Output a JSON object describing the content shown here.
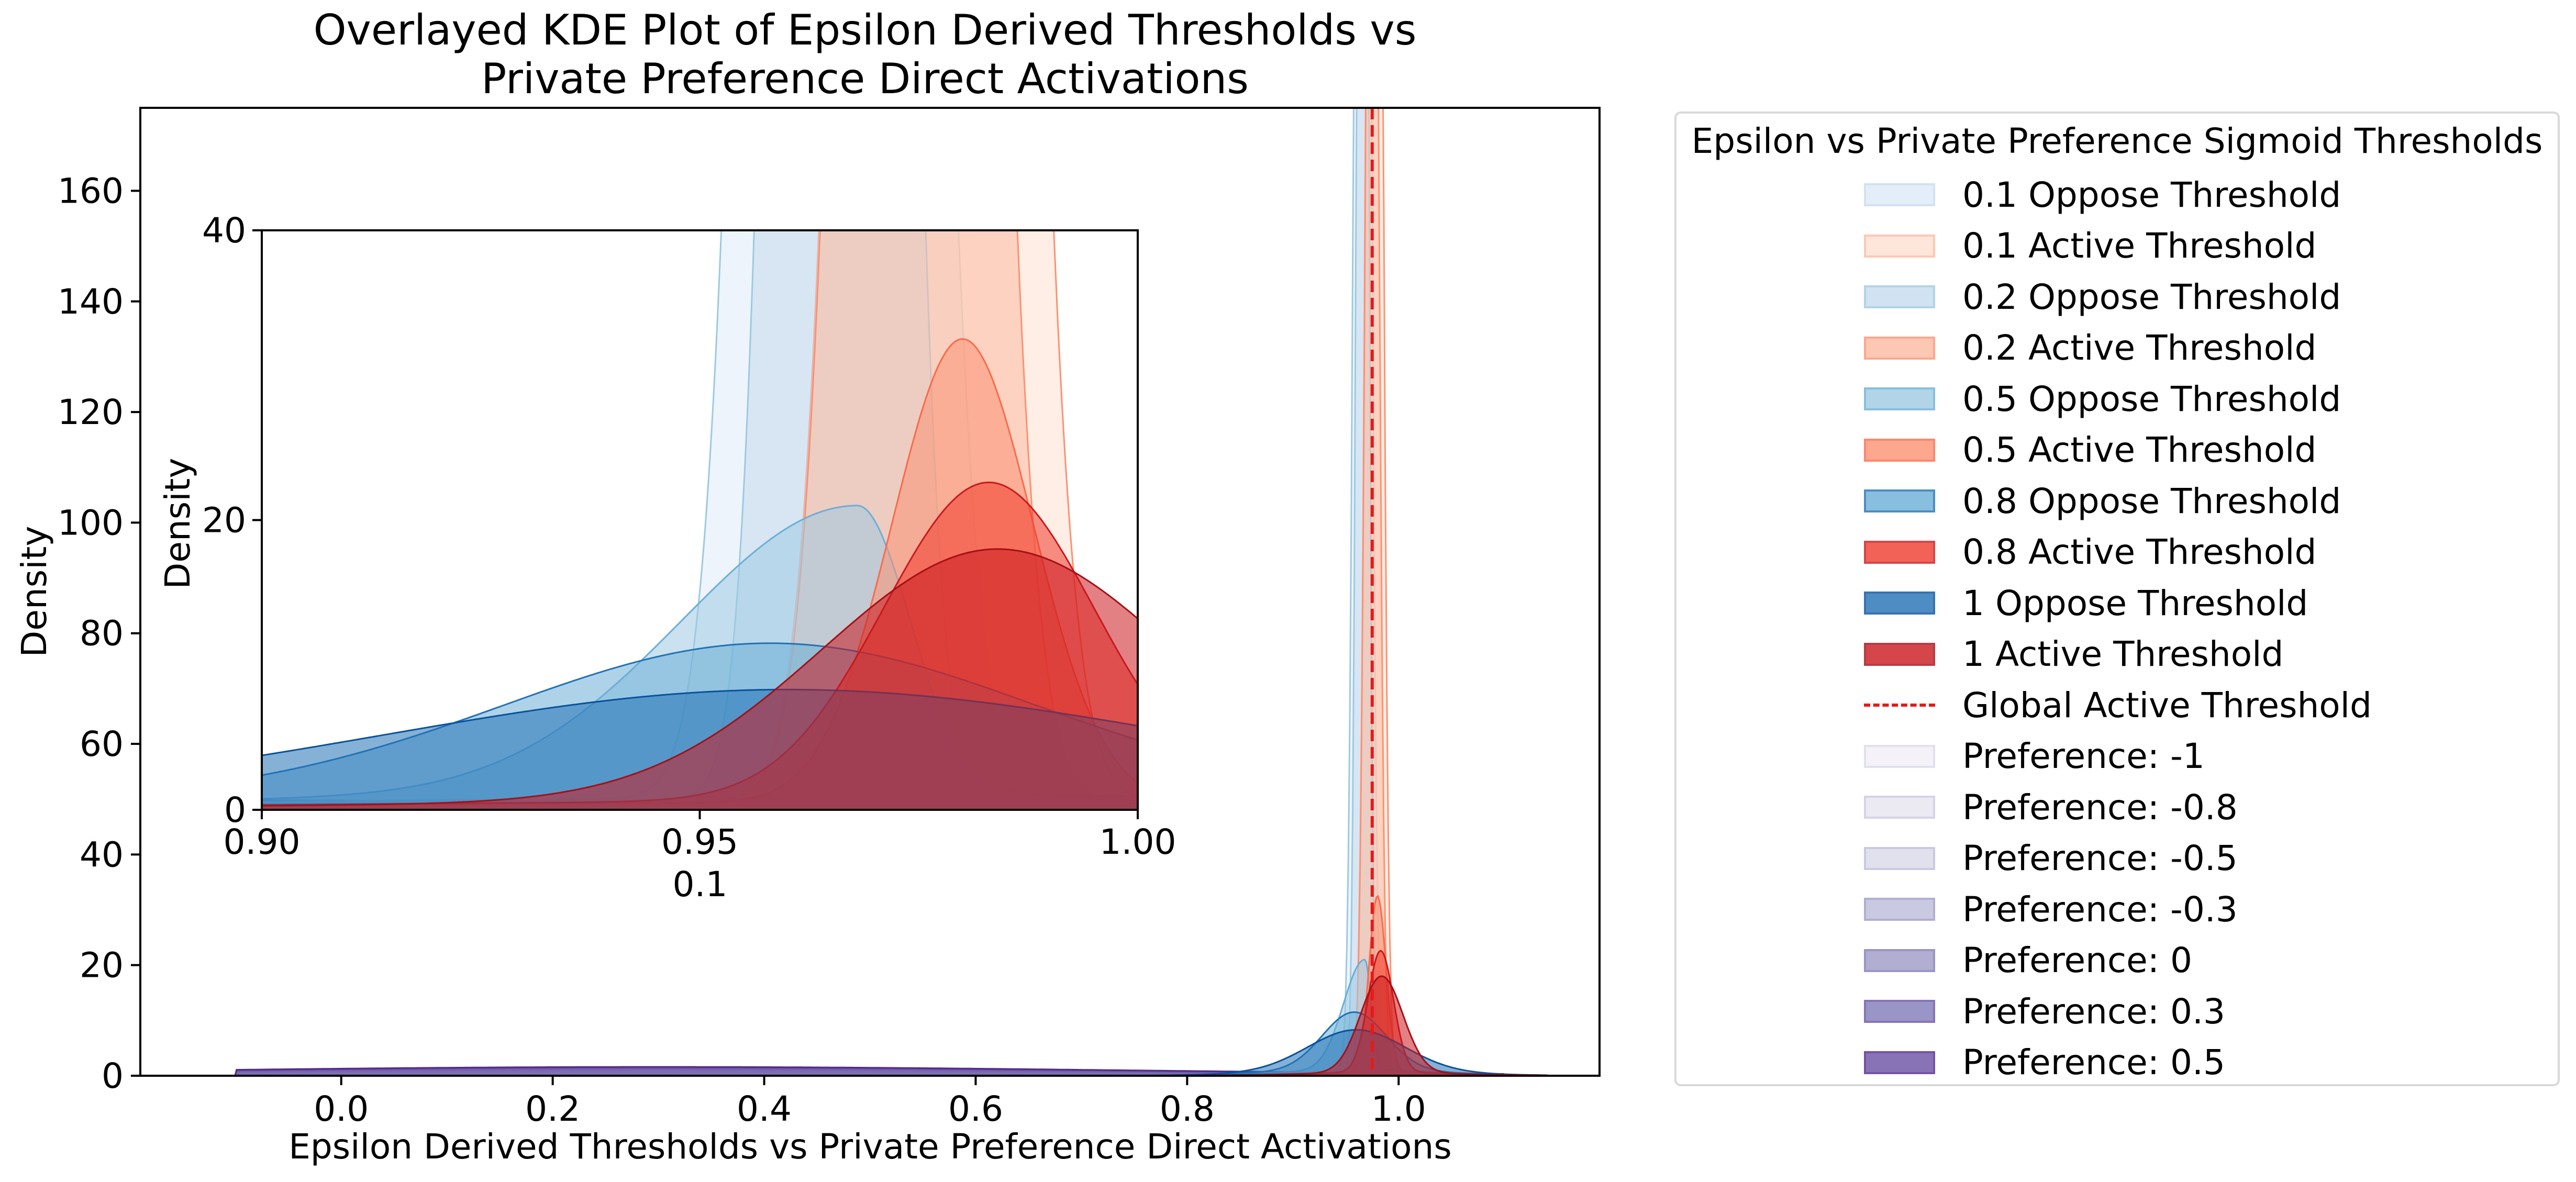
{
  "chart_data": {
    "type": "area",
    "title_lines": [
      "Overlayed KDE Plot of Epsilon Derived Thresholds vs",
      "Private Preference Direct Activations"
    ],
    "xlabel": "Epsilon Derived Thresholds vs Private Preference Direct Activations",
    "ylabel": "Density",
    "xlim": [
      -0.19,
      1.19
    ],
    "ylim": [
      0,
      175
    ],
    "xticks": [
      0.0,
      0.2,
      0.4,
      0.6,
      0.8,
      1.0
    ],
    "xtick_labels": [
      "0.0",
      "0.2",
      "0.4",
      "0.6",
      "0.8",
      "1.0"
    ],
    "yticks": [
      0,
      20,
      40,
      60,
      80,
      100,
      120,
      140,
      160
    ],
    "ytick_labels": [
      "0",
      "20",
      "40",
      "60",
      "80",
      "100",
      "120",
      "140",
      "160"
    ],
    "global_active_threshold": 0.975,
    "series": [
      {
        "name": "0.1 Oppose Threshold",
        "color": "#9ecae1",
        "fill": "#deebf7",
        "kind": "gauss",
        "mu": 0.966,
        "sigma": 0.006,
        "peak": 500,
        "base": 0.8
      },
      {
        "name": "0.1 Active Threshold",
        "color": "#fc9272",
        "fill": "#fee0d2",
        "kind": "gauss",
        "mu": 0.977,
        "sigma": 0.006,
        "peak": 480,
        "base": 0.6
      },
      {
        "name": "0.2 Oppose Threshold",
        "color": "#9ecae1",
        "fill": "#c6dbef",
        "kind": "gauss",
        "mu": 0.966,
        "sigma": 0.0045,
        "peak": 420,
        "base": 0.7
      },
      {
        "name": "0.2 Active Threshold",
        "color": "#fc9272",
        "fill": "#fcbba1",
        "kind": "gauss",
        "mu": 0.975,
        "sigma": 0.0055,
        "peak": 320,
        "base": 0.6
      },
      {
        "name": "0.5 Oppose Threshold",
        "color": "#6baed6",
        "fill": "#9ecae1",
        "kind": "skew",
        "mu": 0.968,
        "sl": 0.02,
        "sr": 0.006,
        "peak": 20,
        "base": 1.0
      },
      {
        "name": "0.5 Active Threshold",
        "color": "#fb6a4a",
        "fill": "#fc9272",
        "kind": "gauss",
        "mu": 0.98,
        "sigma": 0.008,
        "peak": 32,
        "base": 0.5
      },
      {
        "name": "0.8 Oppose Threshold",
        "color": "#2171b5",
        "fill": "#6baed6",
        "kind": "gauss",
        "mu": 0.958,
        "sigma": 0.03,
        "peak": 10.5,
        "base": 1.0
      },
      {
        "name": "0.8 Active Threshold",
        "color": "#cb181d",
        "fill": "#ef3b2c",
        "kind": "gauss",
        "mu": 0.983,
        "sigma": 0.012,
        "peak": 22,
        "base": 0.6
      },
      {
        "name": "1 Oppose Threshold",
        "color": "#08519c",
        "fill": "#2171b5",
        "kind": "gauss",
        "mu": 0.96,
        "sigma": 0.045,
        "peak": 7.3,
        "base": 1.0
      },
      {
        "name": "1 Active Threshold",
        "color": "#a50f15",
        "fill": "#cb181d",
        "kind": "gauss",
        "mu": 0.984,
        "sigma": 0.02,
        "peak": 17.5,
        "base": 0.5
      },
      {
        "name": "Preference: -1",
        "color": "#dadaeb",
        "fill": "#f2f0f7",
        "kind": "wide",
        "mu": 0.3,
        "sigma": 0.4,
        "peak": 0.4
      },
      {
        "name": "Preference: -0.8",
        "color": "#cbc9e2",
        "fill": "#e7e4f0",
        "kind": "wide",
        "mu": 0.3,
        "sigma": 0.4,
        "peak": 0.6
      },
      {
        "name": "Preference: -0.5",
        "color": "#bcbddc",
        "fill": "#dadaeb",
        "kind": "wide",
        "mu": 0.3,
        "sigma": 0.4,
        "peak": 0.8
      },
      {
        "name": "Preference: -0.3",
        "color": "#9e9ac8",
        "fill": "#bcbddc",
        "kind": "wide",
        "mu": 0.3,
        "sigma": 0.42,
        "peak": 1.0
      },
      {
        "name": "Preference: 0",
        "color": "#807dba",
        "fill": "#9e9ac8",
        "kind": "wide",
        "mu": 0.3,
        "sigma": 0.42,
        "peak": 1.2
      },
      {
        "name": "Preference: 0.3",
        "color": "#6a51a3",
        "fill": "#807dba",
        "kind": "wide",
        "mu": 0.3,
        "sigma": 0.45,
        "peak": 1.4
      },
      {
        "name": "Preference: 0.5",
        "color": "#54278f",
        "fill": "#6a51a3",
        "kind": "wide",
        "mu": 0.3,
        "sigma": 0.45,
        "peak": 1.6
      }
    ],
    "inset": {
      "xlim": [
        0.9,
        1.0
      ],
      "ylim": [
        0,
        40
      ],
      "xticks": [
        0.9,
        0.95,
        1.0
      ],
      "xtick_labels": [
        "0.90",
        "0.95",
        "1.00"
      ],
      "yticks": [
        0,
        20,
        40
      ],
      "ytick_labels": [
        "0",
        "20",
        "40"
      ],
      "xlabel": "0.1",
      "ylabel": "Density"
    },
    "legend": {
      "title": "Epsilon vs Private Preference Sigmoid Thresholds",
      "placement": "outside-right",
      "items": [
        {
          "label": "0.1 Oppose Threshold",
          "kind": "patch",
          "fill": "#deebf7",
          "edge": "#c6dbef"
        },
        {
          "label": "0.1 Active Threshold",
          "kind": "patch",
          "fill": "#fee0d2",
          "edge": "#fcbba1"
        },
        {
          "label": "0.2 Oppose Threshold",
          "kind": "patch",
          "fill": "#c6dbef",
          "edge": "#9ecae1"
        },
        {
          "label": "0.2 Active Threshold",
          "kind": "patch",
          "fill": "#fcbba1",
          "edge": "#fc9272"
        },
        {
          "label": "0.5 Oppose Threshold",
          "kind": "patch",
          "fill": "#9ecae1",
          "edge": "#6baed6"
        },
        {
          "label": "0.5 Active Threshold",
          "kind": "patch",
          "fill": "#fc9272",
          "edge": "#fb6a4a"
        },
        {
          "label": "0.8 Oppose Threshold",
          "kind": "patch",
          "fill": "#6baed6",
          "edge": "#2171b5"
        },
        {
          "label": "0.8 Active Threshold",
          "kind": "patch",
          "fill": "#ef3b2c",
          "edge": "#cb181d"
        },
        {
          "label": "1 Oppose Threshold",
          "kind": "patch",
          "fill": "#2171b5",
          "edge": "#08519c"
        },
        {
          "label": "1 Active Threshold",
          "kind": "patch",
          "fill": "#cb181d",
          "edge": "#a50f15"
        },
        {
          "label": "Global Active Threshold",
          "kind": "line",
          "fill": "#e41a1c",
          "edge": "#e41a1c"
        },
        {
          "label": "Preference: -1",
          "kind": "patch",
          "fill": "#f2f0f7",
          "edge": "#dadaeb"
        },
        {
          "label": "Preference: -0.8",
          "kind": "patch",
          "fill": "#e7e4f0",
          "edge": "#cbc9e2"
        },
        {
          "label": "Preference: -0.5",
          "kind": "patch",
          "fill": "#dadaeb",
          "edge": "#bcbddc"
        },
        {
          "label": "Preference: -0.3",
          "kind": "patch",
          "fill": "#bcbddc",
          "edge": "#9e9ac8"
        },
        {
          "label": "Preference: 0",
          "kind": "patch",
          "fill": "#9e9ac8",
          "edge": "#807dba"
        },
        {
          "label": "Preference: 0.3",
          "kind": "patch",
          "fill": "#807dba",
          "edge": "#6a51a3"
        },
        {
          "label": "Preference: 0.5",
          "kind": "patch",
          "fill": "#6a51a3",
          "edge": "#54278f"
        }
      ]
    }
  }
}
